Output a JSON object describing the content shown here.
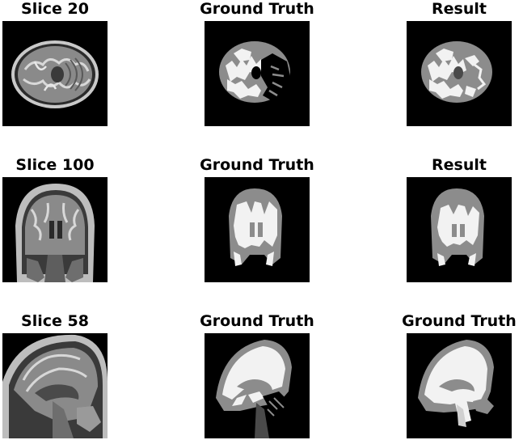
{
  "panels": [
    {
      "title": "Slice 20",
      "kind": "mri",
      "view": "axial"
    },
    {
      "title": "Ground Truth",
      "kind": "seg",
      "view": "axial"
    },
    {
      "title": "Result",
      "kind": "seg",
      "view": "axial"
    },
    {
      "title": "Slice 100",
      "kind": "mri",
      "view": "coronal"
    },
    {
      "title": "Ground Truth",
      "kind": "seg",
      "view": "coronal"
    },
    {
      "title": "Result",
      "kind": "seg",
      "view": "coronal"
    },
    {
      "title": "Slice 58",
      "kind": "mri",
      "view": "sagittal"
    },
    {
      "title": "Ground Truth",
      "kind": "seg",
      "view": "sagittal"
    },
    {
      "title": "Ground Truth",
      "kind": "seg",
      "view": "sagittal"
    }
  ],
  "colors": {
    "background": "#000000",
    "white_matter": "#f2f2f2",
    "gray_matter": "#8c8c8c",
    "csf": "#4a4a4a",
    "mri_tissue": "#8a8a8a",
    "mri_bright": "#d8d8d8"
  }
}
